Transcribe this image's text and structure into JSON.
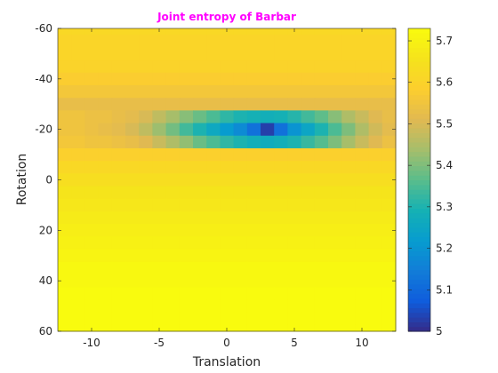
{
  "chart_data": {
    "type": "heatmap",
    "title": "Joint entropy of Barbar",
    "xlabel": "Translation",
    "ylabel": "Rotation",
    "xlim": [
      -12.5,
      12.5
    ],
    "ylim": [
      -60,
      60
    ],
    "y_reversed": true,
    "xticks": [
      -10,
      -5,
      0,
      5,
      10
    ],
    "xtick_labels": [
      "-10",
      "-5",
      "0",
      "5",
      "10"
    ],
    "yticks": [
      -60,
      -40,
      -20,
      0,
      20,
      40,
      60
    ],
    "ytick_labels": [
      "-60",
      "-40",
      "-20",
      "0",
      "20",
      "40",
      "60"
    ],
    "colorbar": {
      "range": [
        5.0,
        5.73
      ],
      "ticks": [
        5,
        5.1,
        5.2,
        5.3,
        5.4,
        5.5,
        5.6,
        5.7
      ],
      "tick_labels": [
        "5",
        "5.1",
        "5.2",
        "5.3",
        "5.4",
        "5.5",
        "5.6",
        "5.7"
      ],
      "colormap": "parula"
    },
    "x": [
      -12,
      -11,
      -10,
      -9,
      -8,
      -7,
      -6,
      -5,
      -4,
      -3,
      -2,
      -1,
      0,
      1,
      2,
      3,
      4,
      5,
      6,
      7,
      8,
      9,
      10,
      11,
      12
    ],
    "y": [
      -60,
      -55,
      -50,
      -45,
      -40,
      -35,
      -30,
      -25,
      -20,
      -15,
      -10,
      -5,
      0,
      5,
      10,
      15,
      20,
      25,
      30,
      35,
      40,
      45,
      50,
      55,
      60
    ],
    "values": [
      [
        5.62,
        5.62,
        5.62,
        5.62,
        5.62,
        5.62,
        5.62,
        5.62,
        5.62,
        5.62,
        5.62,
        5.62,
        5.62,
        5.62,
        5.62,
        5.62,
        5.62,
        5.62,
        5.62,
        5.62,
        5.62,
        5.62,
        5.62,
        5.62,
        5.62
      ],
      [
        5.61,
        5.61,
        5.61,
        5.61,
        5.61,
        5.61,
        5.61,
        5.61,
        5.61,
        5.61,
        5.61,
        5.61,
        5.61,
        5.61,
        5.61,
        5.61,
        5.61,
        5.61,
        5.61,
        5.61,
        5.61,
        5.61,
        5.61,
        5.61,
        5.61
      ],
      [
        5.61,
        5.61,
        5.61,
        5.61,
        5.61,
        5.61,
        5.61,
        5.61,
        5.61,
        5.61,
        5.61,
        5.61,
        5.61,
        5.61,
        5.61,
        5.61,
        5.61,
        5.61,
        5.61,
        5.61,
        5.61,
        5.61,
        5.61,
        5.61,
        5.61
      ],
      [
        5.6,
        5.6,
        5.6,
        5.6,
        5.6,
        5.6,
        5.6,
        5.6,
        5.6,
        5.6,
        5.6,
        5.6,
        5.6,
        5.6,
        5.6,
        5.6,
        5.6,
        5.6,
        5.6,
        5.6,
        5.6,
        5.6,
        5.6,
        5.6,
        5.6
      ],
      [
        5.58,
        5.58,
        5.58,
        5.58,
        5.58,
        5.58,
        5.58,
        5.58,
        5.58,
        5.58,
        5.58,
        5.58,
        5.58,
        5.58,
        5.58,
        5.58,
        5.58,
        5.58,
        5.58,
        5.58,
        5.58,
        5.58,
        5.58,
        5.58,
        5.58
      ],
      [
        5.56,
        5.56,
        5.56,
        5.56,
        5.56,
        5.56,
        5.56,
        5.56,
        5.56,
        5.56,
        5.56,
        5.56,
        5.56,
        5.56,
        5.56,
        5.56,
        5.56,
        5.56,
        5.56,
        5.56,
        5.56,
        5.56,
        5.56,
        5.56,
        5.56
      ],
      [
        5.53,
        5.53,
        5.53,
        5.53,
        5.53,
        5.53,
        5.53,
        5.53,
        5.53,
        5.53,
        5.53,
        5.53,
        5.53,
        5.53,
        5.53,
        5.53,
        5.53,
        5.53,
        5.53,
        5.53,
        5.53,
        5.53,
        5.53,
        5.53,
        5.53
      ],
      [
        5.55,
        5.55,
        5.54,
        5.54,
        5.53,
        5.52,
        5.5,
        5.47,
        5.44,
        5.41,
        5.38,
        5.35,
        5.32,
        5.3,
        5.29,
        5.28,
        5.29,
        5.31,
        5.34,
        5.37,
        5.41,
        5.45,
        5.48,
        5.51,
        5.53
      ],
      [
        5.55,
        5.55,
        5.54,
        5.53,
        5.52,
        5.5,
        5.47,
        5.43,
        5.39,
        5.34,
        5.3,
        5.26,
        5.22,
        5.18,
        5.12,
        5.03,
        5.12,
        5.2,
        5.25,
        5.3,
        5.35,
        5.4,
        5.45,
        5.49,
        5.52
      ],
      [
        5.56,
        5.56,
        5.55,
        5.55,
        5.54,
        5.53,
        5.51,
        5.48,
        5.45,
        5.42,
        5.38,
        5.35,
        5.32,
        5.3,
        5.28,
        5.27,
        5.28,
        5.3,
        5.33,
        5.36,
        5.4,
        5.44,
        5.48,
        5.51,
        5.54
      ],
      [
        5.59,
        5.59,
        5.59,
        5.59,
        5.59,
        5.59,
        5.59,
        5.59,
        5.59,
        5.59,
        5.59,
        5.59,
        5.59,
        5.59,
        5.59,
        5.59,
        5.59,
        5.59,
        5.59,
        5.59,
        5.59,
        5.59,
        5.59,
        5.59,
        5.59
      ],
      [
        5.62,
        5.62,
        5.62,
        5.62,
        5.62,
        5.62,
        5.62,
        5.62,
        5.62,
        5.62,
        5.62,
        5.62,
        5.62,
        5.62,
        5.62,
        5.62,
        5.62,
        5.62,
        5.62,
        5.62,
        5.62,
        5.62,
        5.62,
        5.62,
        5.62
      ],
      [
        5.64,
        5.64,
        5.64,
        5.64,
        5.64,
        5.64,
        5.64,
        5.64,
        5.64,
        5.64,
        5.64,
        5.64,
        5.64,
        5.64,
        5.64,
        5.64,
        5.64,
        5.64,
        5.64,
        5.64,
        5.64,
        5.64,
        5.64,
        5.64,
        5.64
      ],
      [
        5.66,
        5.66,
        5.66,
        5.66,
        5.66,
        5.66,
        5.66,
        5.66,
        5.66,
        5.66,
        5.66,
        5.66,
        5.66,
        5.66,
        5.66,
        5.66,
        5.66,
        5.66,
        5.66,
        5.66,
        5.66,
        5.66,
        5.66,
        5.66,
        5.66
      ],
      [
        5.67,
        5.67,
        5.67,
        5.67,
        5.67,
        5.67,
        5.67,
        5.67,
        5.67,
        5.67,
        5.67,
        5.67,
        5.67,
        5.67,
        5.67,
        5.67,
        5.67,
        5.67,
        5.67,
        5.67,
        5.67,
        5.67,
        5.67,
        5.67,
        5.67
      ],
      [
        5.68,
        5.68,
        5.68,
        5.68,
        5.68,
        5.68,
        5.68,
        5.68,
        5.68,
        5.68,
        5.68,
        5.68,
        5.68,
        5.68,
        5.68,
        5.68,
        5.68,
        5.68,
        5.68,
        5.68,
        5.68,
        5.68,
        5.68,
        5.68,
        5.68
      ],
      [
        5.69,
        5.69,
        5.69,
        5.69,
        5.69,
        5.69,
        5.69,
        5.69,
        5.69,
        5.69,
        5.69,
        5.69,
        5.69,
        5.69,
        5.69,
        5.69,
        5.69,
        5.69,
        5.69,
        5.69,
        5.69,
        5.69,
        5.69,
        5.69,
        5.69
      ],
      [
        5.7,
        5.7,
        5.7,
        5.7,
        5.7,
        5.7,
        5.7,
        5.7,
        5.7,
        5.7,
        5.7,
        5.7,
        5.7,
        5.7,
        5.7,
        5.7,
        5.7,
        5.7,
        5.7,
        5.7,
        5.7,
        5.7,
        5.7,
        5.7,
        5.7
      ],
      [
        5.71,
        5.71,
        5.71,
        5.71,
        5.71,
        5.71,
        5.71,
        5.71,
        5.71,
        5.71,
        5.71,
        5.71,
        5.71,
        5.71,
        5.71,
        5.71,
        5.71,
        5.71,
        5.71,
        5.71,
        5.71,
        5.71,
        5.71,
        5.71,
        5.71
      ],
      [
        5.72,
        5.72,
        5.72,
        5.72,
        5.72,
        5.72,
        5.72,
        5.72,
        5.72,
        5.72,
        5.72,
        5.72,
        5.72,
        5.72,
        5.72,
        5.72,
        5.72,
        5.72,
        5.72,
        5.72,
        5.72,
        5.72,
        5.72,
        5.72,
        5.72
      ],
      [
        5.72,
        5.72,
        5.72,
        5.72,
        5.72,
        5.72,
        5.72,
        5.72,
        5.72,
        5.72,
        5.72,
        5.72,
        5.72,
        5.72,
        5.72,
        5.72,
        5.72,
        5.72,
        5.72,
        5.72,
        5.72,
        5.72,
        5.72,
        5.72,
        5.72
      ],
      [
        5.73,
        5.73,
        5.73,
        5.73,
        5.73,
        5.73,
        5.73,
        5.73,
        5.73,
        5.73,
        5.73,
        5.73,
        5.73,
        5.73,
        5.73,
        5.73,
        5.73,
        5.73,
        5.73,
        5.73,
        5.73,
        5.73,
        5.73,
        5.73,
        5.73
      ],
      [
        5.73,
        5.73,
        5.73,
        5.73,
        5.73,
        5.73,
        5.73,
        5.73,
        5.73,
        5.73,
        5.73,
        5.73,
        5.73,
        5.73,
        5.73,
        5.73,
        5.73,
        5.73,
        5.73,
        5.73,
        5.73,
        5.73,
        5.73,
        5.73,
        5.73
      ],
      [
        5.73,
        5.73,
        5.73,
        5.73,
        5.73,
        5.73,
        5.73,
        5.73,
        5.73,
        5.73,
        5.73,
        5.73,
        5.73,
        5.73,
        5.73,
        5.73,
        5.73,
        5.73,
        5.73,
        5.73,
        5.73,
        5.73,
        5.73,
        5.73,
        5.73
      ],
      [
        5.73,
        5.73,
        5.73,
        5.73,
        5.73,
        5.73,
        5.73,
        5.73,
        5.73,
        5.73,
        5.73,
        5.73,
        5.73,
        5.73,
        5.73,
        5.73,
        5.73,
        5.73,
        5.73,
        5.73,
        5.73,
        5.73,
        5.73,
        5.73,
        5.73
      ]
    ]
  }
}
